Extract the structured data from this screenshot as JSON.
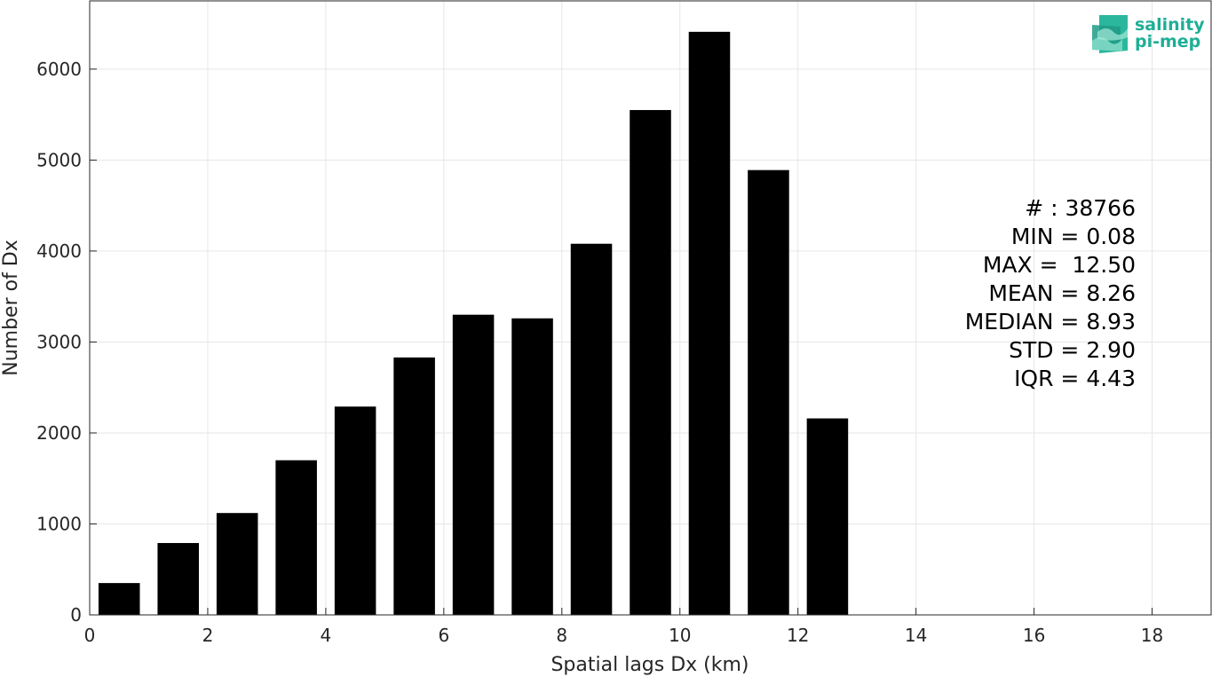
{
  "logo": {
    "line1": "salinity",
    "line2": "pi-mep"
  },
  "chart_data": {
    "type": "bar",
    "xlabel": "Spatial lags Dx (km)",
    "ylabel": "Number of Dx",
    "xlim": [
      0,
      19
    ],
    "ylim": [
      0,
      6750
    ],
    "xticks": [
      0,
      2,
      4,
      6,
      8,
      10,
      12,
      14,
      16,
      18
    ],
    "yticks": [
      0,
      1000,
      2000,
      3000,
      4000,
      5000,
      6000
    ],
    "grid": true,
    "bar_color": "#000000",
    "bin_width": 0.7,
    "bins": [
      {
        "center": 0.5,
        "value": 350
      },
      {
        "center": 1.5,
        "value": 790
      },
      {
        "center": 2.5,
        "value": 1120
      },
      {
        "center": 3.5,
        "value": 1700
      },
      {
        "center": 4.5,
        "value": 2290
      },
      {
        "center": 5.5,
        "value": 2830
      },
      {
        "center": 6.5,
        "value": 3300
      },
      {
        "center": 7.5,
        "value": 3260
      },
      {
        "center": 8.5,
        "value": 4080
      },
      {
        "center": 9.5,
        "value": 5550
      },
      {
        "center": 10.5,
        "value": 6410
      },
      {
        "center": 11.5,
        "value": 4890
      },
      {
        "center": 12.5,
        "value": 2160
      }
    ],
    "stats": [
      "# : 38766",
      "MIN = 0.08",
      "MAX =  12.50",
      "MEAN = 8.26",
      "MEDIAN = 8.93",
      "STD = 2.90",
      "IQR = 4.43"
    ]
  }
}
